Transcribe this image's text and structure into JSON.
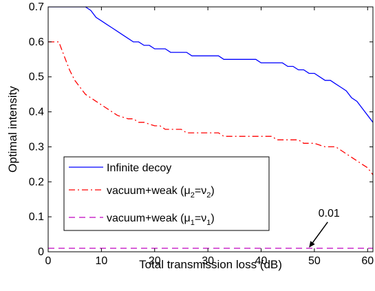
{
  "chart_data": {
    "type": "line",
    "title": "",
    "xlabel": "Total transmission loss (dB)",
    "ylabel": "Optimal intensity",
    "xlim": [
      0,
      61
    ],
    "ylim": [
      0,
      0.7
    ],
    "xticks": [
      0,
      10,
      20,
      30,
      40,
      50,
      60
    ],
    "yticks": [
      0,
      0.1,
      0.2,
      0.3,
      0.4,
      0.5,
      0.6,
      0.7
    ],
    "ytick_labels": [
      "0",
      "0.1",
      "0.2",
      "0.3",
      "0.4",
      "0.5",
      "0.6",
      "0.7"
    ],
    "grid": false,
    "legend_position": "bottom-left",
    "legend": [
      {
        "key": "infinite",
        "text": "Infinite decoy"
      },
      {
        "key": "weak2",
        "prefix": "vacuum+weak (",
        "mu": "μ",
        "mu_sub": "2",
        "eq": "=",
        "nu": "ν",
        "nu_sub": "2",
        "suffix": ")"
      },
      {
        "key": "weak1",
        "prefix": "vacuum+weak (",
        "mu": "μ",
        "mu_sub": "1",
        "eq": "=",
        "nu": "ν",
        "nu_sub": "1",
        "suffix": ")"
      }
    ],
    "annotation": {
      "text": "0.01",
      "arrow_from": [
        52.5,
        0.085
      ],
      "arrow_to": [
        49,
        0.012
      ]
    },
    "series": [
      {
        "key": "infinite",
        "color": "#0000ff",
        "dash": "solid",
        "x": [
          0,
          1,
          2,
          3,
          4,
          5,
          6,
          7,
          8,
          9,
          10,
          11,
          12,
          13,
          14,
          15,
          16,
          17,
          18,
          19,
          20,
          21,
          22,
          23,
          24,
          25,
          26,
          27,
          28,
          29,
          30,
          31,
          32,
          33,
          34,
          35,
          36,
          37,
          38,
          39,
          40,
          41,
          42,
          43,
          44,
          45,
          46,
          47,
          48,
          49,
          50,
          51,
          52,
          53,
          54,
          55,
          56,
          57,
          58,
          59,
          60,
          61
        ],
        "y": [
          0.7,
          0.7,
          0.7,
          0.7,
          0.7,
          0.7,
          0.7,
          0.7,
          0.69,
          0.67,
          0.66,
          0.65,
          0.64,
          0.63,
          0.62,
          0.61,
          0.6,
          0.6,
          0.59,
          0.59,
          0.58,
          0.58,
          0.58,
          0.57,
          0.57,
          0.57,
          0.57,
          0.56,
          0.56,
          0.56,
          0.56,
          0.56,
          0.56,
          0.55,
          0.55,
          0.55,
          0.55,
          0.55,
          0.55,
          0.55,
          0.54,
          0.54,
          0.54,
          0.54,
          0.54,
          0.53,
          0.53,
          0.52,
          0.52,
          0.51,
          0.51,
          0.5,
          0.49,
          0.49,
          0.48,
          0.47,
          0.46,
          0.44,
          0.43,
          0.41,
          0.39,
          0.37
        ]
      },
      {
        "key": "weak2",
        "color": "#ff0000",
        "dash": "dashdot",
        "x": [
          0,
          1,
          2,
          3,
          4,
          5,
          6,
          7,
          8,
          9,
          10,
          11,
          12,
          13,
          14,
          15,
          16,
          17,
          18,
          19,
          20,
          21,
          22,
          23,
          24,
          25,
          26,
          27,
          28,
          29,
          30,
          31,
          32,
          33,
          34,
          35,
          36,
          37,
          38,
          39,
          40,
          41,
          42,
          43,
          44,
          45,
          46,
          47,
          48,
          49,
          50,
          51,
          52,
          53,
          54,
          55,
          56,
          57,
          58,
          59,
          60,
          61
        ],
        "y": [
          0.6,
          0.6,
          0.6,
          0.56,
          0.52,
          0.49,
          0.47,
          0.45,
          0.44,
          0.43,
          0.42,
          0.41,
          0.4,
          0.39,
          0.385,
          0.38,
          0.38,
          0.37,
          0.37,
          0.365,
          0.36,
          0.36,
          0.35,
          0.35,
          0.35,
          0.35,
          0.34,
          0.34,
          0.34,
          0.34,
          0.34,
          0.34,
          0.34,
          0.33,
          0.33,
          0.33,
          0.33,
          0.33,
          0.33,
          0.33,
          0.33,
          0.33,
          0.33,
          0.32,
          0.32,
          0.32,
          0.32,
          0.32,
          0.31,
          0.31,
          0.31,
          0.305,
          0.3,
          0.3,
          0.3,
          0.29,
          0.28,
          0.27,
          0.26,
          0.25,
          0.24,
          0.22
        ]
      },
      {
        "key": "weak1",
        "color": "#bf00bf",
        "dash": "dashed",
        "x": [
          0,
          61
        ],
        "y": [
          0.01,
          0.01
        ]
      }
    ]
  }
}
